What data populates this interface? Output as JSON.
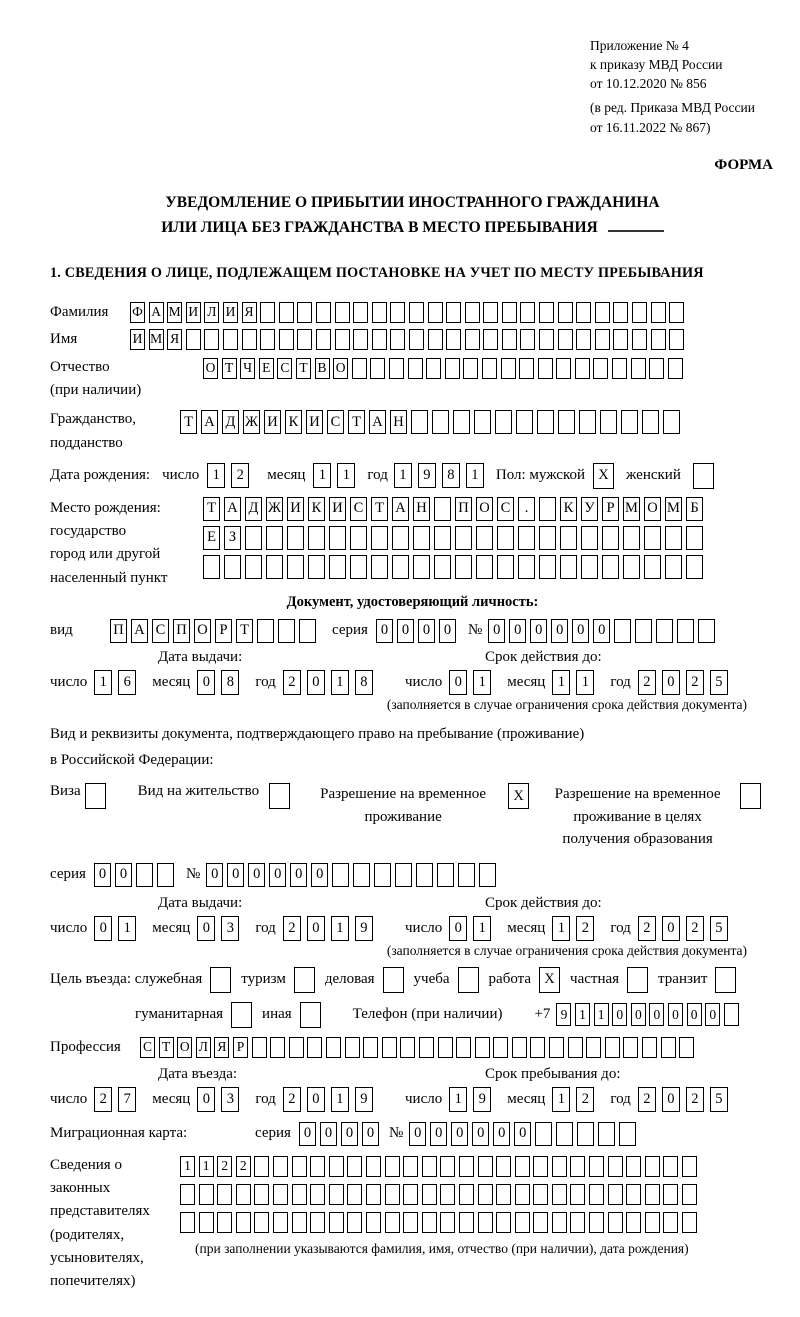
{
  "header": {
    "appendix_lines": [
      "Приложение № 4",
      "к приказу МВД России",
      "от 10.12.2020 № 856"
    ],
    "amendment_lines": [
      "(в ред. Приказа МВД России",
      "от 16.11.2022 № 867)"
    ],
    "forma": "ФОРМА"
  },
  "title": {
    "line1": "УВЕДОМЛЕНИЕ О ПРИБЫТИИ ИНОСТРАННОГО ГРАЖДАНИНА",
    "line2": "ИЛИ ЛИЦА БЕЗ ГРАЖДАНСТВА В МЕСТО ПРЕБЫВАНИЯ"
  },
  "section1_title": "1. СВЕДЕНИЯ О ЛИЦЕ, ПОДЛЕЖАЩЕМ ПОСТАНОВКЕ НА УЧЕТ ПО МЕСТУ ПРЕБЫВАНИЯ",
  "labels": {
    "surname": "Фамилия",
    "name": "Имя",
    "patronymic": "Отчество",
    "if_any": "(при наличии)",
    "citizenship1": "Гражданство,",
    "citizenship2": "подданство",
    "birth_date": "Дата рождения:",
    "day": "число",
    "month": "месяц",
    "year": "год",
    "sex_male": "Пол: мужской",
    "sex_female": "женский",
    "birth_place": "Место рождения:",
    "state": "государство",
    "city1": "город или другой",
    "city2": "населенный пункт",
    "id_doc_header": "Документ, удостоверяющий личность:",
    "doc_type": "вид",
    "series": "серия",
    "number": "№",
    "issue_date": "Дата выдачи:",
    "valid_until": "Срок действия до:",
    "valid_note": "(заполняется в случае ограничения срока действия документа)",
    "residence_doc1": "Вид и реквизиты документа, подтверждающего право на пребывание (проживание)",
    "residence_doc2": "в Российской Федерации:",
    "visa": "Виза",
    "resident_permit": "Вид на жительство",
    "temp_permit1": "Разрешение на временное",
    "temp_permit2": "проживание",
    "edu_permit1": "Разрешение на временное",
    "edu_permit2": "проживание в целях",
    "edu_permit3": "получения образования",
    "purpose": "Цель въезда: служебная",
    "tourism": "туризм",
    "business": "деловая",
    "study": "учеба",
    "work": "работа",
    "private": "частная",
    "transit": "транзит",
    "humanitarian": "гуманитарная",
    "other": "иная",
    "phone": "Телефон (при наличии)",
    "profession": "Профессия",
    "entry_date": "Дата въезда:",
    "stay_until": "Срок пребывания до:",
    "migration_card": "Миграционная карта:",
    "rep1": "Сведения о",
    "rep2": "законных",
    "rep3": "представителях",
    "rep4": "(родителях,",
    "rep5": "усыновителях,",
    "rep6": "попечителях)",
    "rep_note": "(при заполнении указываются фамилия, имя, отчество (при наличии), дата рождения)"
  },
  "fields": {
    "surname": {
      "value": "ФАМИЛИЯ",
      "length": 30
    },
    "name": {
      "value": "ИМЯ",
      "length": 30
    },
    "patronymic": {
      "value": "ОТЧЕСТВО",
      "length": 26
    },
    "citizenship": {
      "value": "ТАДЖИКИСТАН",
      "length": 24
    },
    "birth_date": {
      "day": "12",
      "month": "11",
      "year": "1981"
    },
    "sex": {
      "male": "X",
      "female": ""
    },
    "birth_place_row1": {
      "value": "ТАДЖИКИСТАН ПОС. КУРМОМБ",
      "length": 24
    },
    "birth_place_row2": {
      "value": "ЕЗ",
      "length": 24
    },
    "birth_place_row3": {
      "value": "",
      "length": 24
    },
    "id_doc": {
      "type": {
        "value": "ПАСПОРТ",
        "length": 10
      },
      "series": {
        "value": "0000",
        "length": 4
      },
      "number": {
        "value": "000000",
        "length": 11
      },
      "issue": {
        "day": "16",
        "month": "08",
        "year": "2018"
      },
      "expiry": {
        "day": "01",
        "month": "11",
        "year": "2025"
      }
    },
    "residence_doc": {
      "visa": "",
      "resident_permit": "",
      "temp_permit": "X",
      "edu_permit": "",
      "series": {
        "value": "00",
        "length": 4
      },
      "number": {
        "value": "000000",
        "length": 14
      },
      "issue": {
        "day": "01",
        "month": "03",
        "year": "2019"
      },
      "expiry": {
        "day": "01",
        "month": "12",
        "year": "2025"
      }
    },
    "purpose": {
      "official": "",
      "tourism": "",
      "business": "",
      "study": "",
      "work": "X",
      "private": "",
      "transit": "",
      "humanitarian": "",
      "other": ""
    },
    "phone": {
      "prefix": "+7",
      "value": "911000000",
      "length": 10
    },
    "profession": {
      "value": "СТОЛЯР",
      "length": 30
    },
    "entry_date": {
      "day": "27",
      "month": "03",
      "year": "2019"
    },
    "stay_until": {
      "day": "19",
      "month": "12",
      "year": "2025"
    },
    "migration_card": {
      "series": {
        "value": "0000",
        "length": 4
      },
      "number": {
        "value": "000000",
        "length": 11
      }
    },
    "representatives": {
      "row1": {
        "value": "1122",
        "length": 28
      },
      "row2": {
        "value": "",
        "length": 28
      },
      "row3": {
        "value": "",
        "length": 28
      }
    }
  }
}
